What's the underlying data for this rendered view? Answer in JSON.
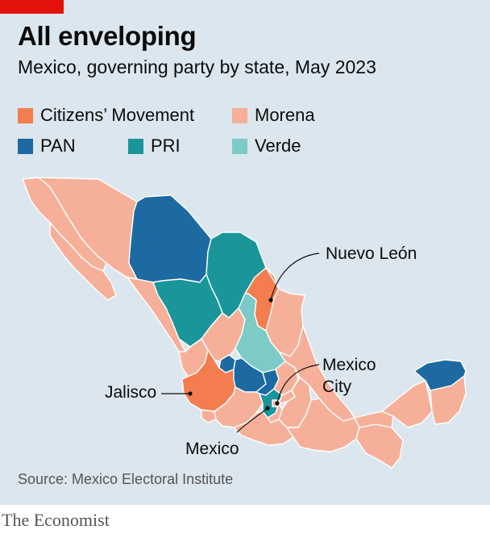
{
  "header": {
    "title": "All enveloping",
    "subtitle": "Mexico, governing party by state, May 2023"
  },
  "colors": {
    "citizens_movement": "#f47d50",
    "morena": "#f6b099",
    "pan": "#1c6aa1",
    "pri": "#1a969b",
    "verde": "#7ccbc6",
    "background": "#dce6ee",
    "brand_red": "#e3120b"
  },
  "legend": [
    {
      "label": "Citizens’ Movement",
      "color": "#f47d50"
    },
    {
      "label": "Morena",
      "color": "#f6b099"
    },
    {
      "label": "PAN",
      "color": "#1c6aa1"
    },
    {
      "label": "PRI",
      "color": "#1a969b"
    },
    {
      "label": "Verde",
      "color": "#7ccbc6"
    }
  ],
  "callouts": {
    "nuevo_leon": "Nuevo León",
    "mexico_city_1": "Mexico",
    "mexico_city_2": "City",
    "jalisco": "Jalisco",
    "mexico": "Mexico"
  },
  "footer": {
    "source": "Source: Mexico Electoral Institute",
    "brand": "The Economist"
  }
}
